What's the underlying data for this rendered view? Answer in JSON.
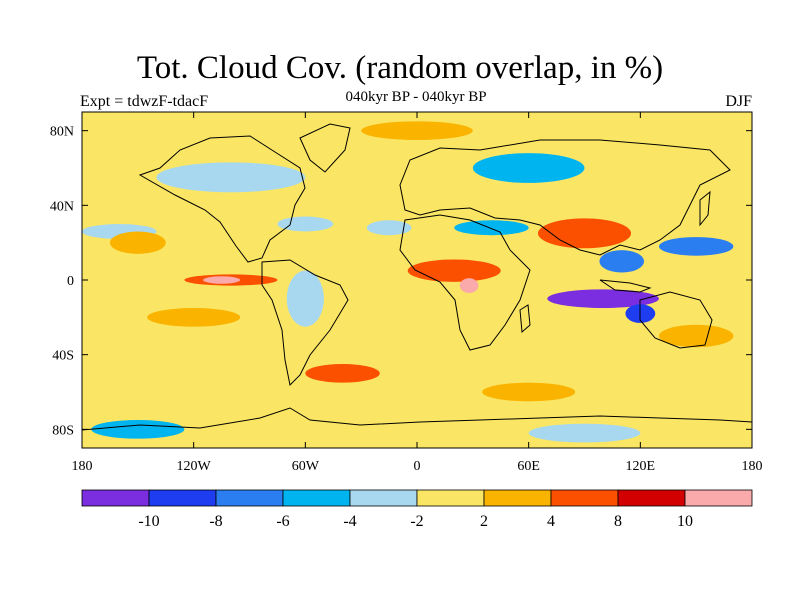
{
  "title": "Tot. Cloud Cov. (random overlap, in %)",
  "subtitle": "040kyr BP - 040kyr BP",
  "left_label": "Expt = tdwzF-tdacF",
  "right_label": "DJF",
  "chart_data": {
    "type": "heatmap",
    "title": "Tot. Cloud Cov. (random overlap, in %)",
    "subtitle": "040kyr BP - 040kyr BP",
    "xlim": [
      -180,
      180
    ],
    "ylim": [
      -90,
      90
    ],
    "x_ticks": [
      {
        "value": -180,
        "label": "180"
      },
      {
        "value": -120,
        "label": "120W"
      },
      {
        "value": -60,
        "label": "60W"
      },
      {
        "value": 0,
        "label": "0"
      },
      {
        "value": 60,
        "label": "60E"
      },
      {
        "value": 120,
        "label": "120E"
      },
      {
        "value": 180,
        "label": "180"
      }
    ],
    "y_ticks": [
      {
        "value": 80,
        "label": "80N"
      },
      {
        "value": 40,
        "label": "40N"
      },
      {
        "value": 0,
        "label": "0"
      },
      {
        "value": -40,
        "label": "40S"
      },
      {
        "value": -80,
        "label": "80S"
      }
    ],
    "colorbar": {
      "colors": [
        "#7b2de0",
        "#1e3cf0",
        "#2a7ef0",
        "#00b4f0",
        "#a8d8f0",
        "#fae664",
        "#fab400",
        "#fa5000",
        "#d20000",
        "#faaaaa"
      ],
      "boundaries": [
        -10,
        -8,
        -6,
        -4,
        -2,
        2,
        4,
        8,
        10
      ],
      "labels": [
        "-10",
        "-8",
        "-6",
        "-4",
        "-2",
        "2",
        "4",
        "8",
        "10"
      ]
    },
    "background_level": 5,
    "regions": [
      {
        "lon": -15,
        "lat": 28,
        "rx": 12,
        "ry": 4,
        "level": 4
      },
      {
        "lon": 40,
        "lat": 28,
        "rx": 20,
        "ry": 4,
        "level": 3
      },
      {
        "lon": -160,
        "lat": 26,
        "rx": 20,
        "ry": 4,
        "level": 4
      },
      {
        "lon": -60,
        "lat": 30,
        "rx": 15,
        "ry": 4,
        "level": 4
      },
      {
        "lon": 150,
        "lat": 18,
        "rx": 20,
        "ry": 5,
        "level": 2
      },
      {
        "lon": 110,
        "lat": 10,
        "rx": 12,
        "ry": 6,
        "level": 2
      },
      {
        "lon": 100,
        "lat": -10,
        "rx": 30,
        "ry": 5,
        "level": 0
      },
      {
        "lon": 120,
        "lat": -18,
        "rx": 8,
        "ry": 5,
        "level": 1
      },
      {
        "lon": 20,
        "lat": 5,
        "rx": 25,
        "ry": 6,
        "level": 7
      },
      {
        "lon": 28,
        "lat": -3,
        "rx": 5,
        "ry": 4,
        "level": 9
      },
      {
        "lon": -100,
        "lat": 0,
        "rx": 25,
        "ry": 3,
        "level": 7
      },
      {
        "lon": -105,
        "lat": 0,
        "rx": 10,
        "ry": 2,
        "level": 9
      },
      {
        "lon": -120,
        "lat": -20,
        "rx": 25,
        "ry": 5,
        "level": 6
      },
      {
        "lon": 90,
        "lat": 25,
        "rx": 25,
        "ry": 8,
        "level": 7
      },
      {
        "lon": -150,
        "lat": 20,
        "rx": 15,
        "ry": 6,
        "level": 6
      },
      {
        "lon": -40,
        "lat": -50,
        "rx": 20,
        "ry": 5,
        "level": 7
      },
      {
        "lon": 60,
        "lat": -60,
        "rx": 25,
        "ry": 5,
        "level": 6
      },
      {
        "lon": -100,
        "lat": 55,
        "rx": 40,
        "ry": 8,
        "level": 4
      },
      {
        "lon": 60,
        "lat": 60,
        "rx": 30,
        "ry": 8,
        "level": 3
      },
      {
        "lon": 0,
        "lat": 80,
        "rx": 30,
        "ry": 5,
        "level": 6
      },
      {
        "lon": -150,
        "lat": -80,
        "rx": 25,
        "ry": 5,
        "level": 3
      },
      {
        "lon": 90,
        "lat": -82,
        "rx": 30,
        "ry": 5,
        "level": 4
      },
      {
        "lon": -60,
        "lat": -10,
        "rx": 10,
        "ry": 15,
        "level": 4
      },
      {
        "lon": 150,
        "lat": -30,
        "rx": 20,
        "ry": 6,
        "level": 6
      }
    ]
  }
}
